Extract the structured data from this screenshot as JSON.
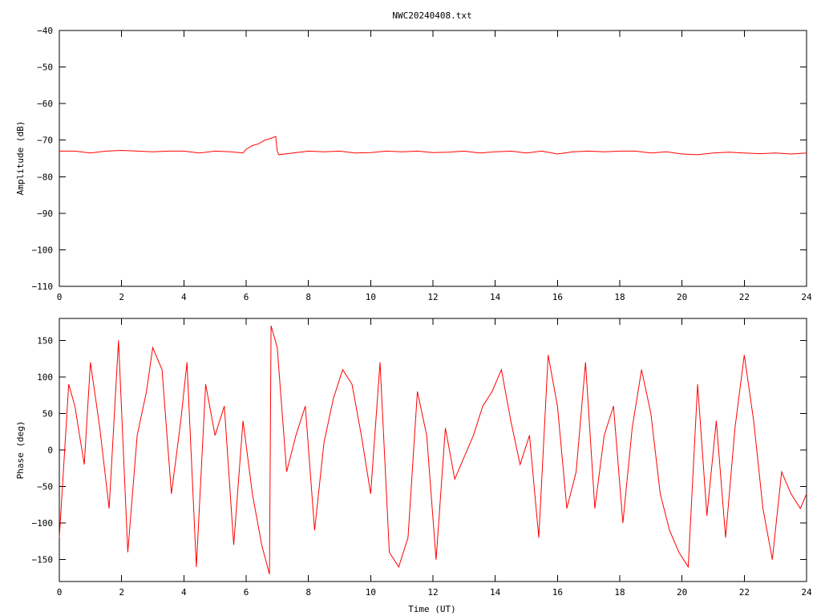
{
  "title": "NWC20240408.txt",
  "colors": {
    "trace": "#ff0000",
    "axis": "#000000",
    "background": "#ffffff"
  },
  "chart_data": [
    {
      "type": "line",
      "ylabel": "Amplitude (dB)",
      "xlabel": "",
      "xlim": [
        0,
        24
      ],
      "ylim": [
        -110,
        -40
      ],
      "xticks": [
        "0",
        "2",
        "4",
        "6",
        "8",
        "10",
        "12",
        "14",
        "16",
        "18",
        "20",
        "22",
        "24"
      ],
      "yticks": [
        "-40",
        "-50",
        "-60",
        "-70",
        "-80",
        "-90",
        "-100",
        "-110"
      ],
      "grid": false,
      "series": [
        {
          "x": [
            0,
            0.5,
            1,
            1.5,
            2,
            2.5,
            3,
            3.5,
            4,
            4.5,
            5,
            5.5,
            5.9,
            6.0,
            6.2,
            6.4,
            6.6,
            6.8,
            6.95,
            7.0,
            7.05,
            7.5,
            8,
            8.5,
            9,
            9.5,
            10,
            10.5,
            11,
            11.5,
            12,
            12.5,
            13,
            13.5,
            14,
            14.5,
            15,
            15.5,
            16,
            16.5,
            17,
            17.5,
            18,
            18.5,
            19,
            19.5,
            20,
            20.5,
            21,
            21.5,
            22,
            22.5,
            23,
            23.5,
            24
          ],
          "values": [
            -73,
            -73,
            -73.5,
            -73,
            -72.8,
            -73,
            -73.2,
            -73,
            -73,
            -73.5,
            -73,
            -73.2,
            -73.5,
            -72.5,
            -71.5,
            -71,
            -70,
            -69.5,
            -69,
            -73,
            -74,
            -73.5,
            -73,
            -73.2,
            -73,
            -73.5,
            -73.4,
            -73,
            -73.2,
            -73,
            -73.4,
            -73.3,
            -73,
            -73.5,
            -73.2,
            -73,
            -73.5,
            -73,
            -73.8,
            -73.2,
            -73,
            -73.2,
            -73,
            -73,
            -73.5,
            -73.2,
            -73.8,
            -74,
            -73.5,
            -73.3,
            -73.5,
            -73.7,
            -73.5,
            -73.8,
            -73.5
          ]
        }
      ]
    },
    {
      "type": "line",
      "ylabel": "Phase (deg)",
      "xlabel": "Time (UT)",
      "xlim": [
        0,
        24
      ],
      "ylim": [
        -180,
        180
      ],
      "xticks": [
        "0",
        "2",
        "4",
        "6",
        "8",
        "10",
        "12",
        "14",
        "16",
        "18",
        "20",
        "22",
        "24"
      ],
      "yticks": [
        "150",
        "100",
        "50",
        "0",
        "-50",
        "-100",
        "-150"
      ],
      "grid": false,
      "series": [
        {
          "x": [
            0,
            0.3,
            0.5,
            0.8,
            1,
            1.3,
            1.6,
            1.9,
            2.2,
            2.5,
            2.8,
            3.0,
            3.3,
            3.6,
            3.9,
            4.1,
            4.4,
            4.7,
            5.0,
            5.3,
            5.6,
            5.9,
            6.2,
            6.5,
            6.75,
            6.8,
            7.0,
            7.3,
            7.6,
            7.9,
            8.2,
            8.5,
            8.8,
            9.1,
            9.4,
            9.7,
            10.0,
            10.3,
            10.6,
            10.9,
            11.2,
            11.5,
            11.8,
            12.1,
            12.4,
            12.7,
            13.0,
            13.3,
            13.6,
            13.9,
            14.2,
            14.5,
            14.8,
            15.1,
            15.4,
            15.7,
            16.0,
            16.3,
            16.6,
            16.9,
            17.2,
            17.5,
            17.8,
            18.1,
            18.4,
            18.7,
            19.0,
            19.3,
            19.6,
            19.9,
            20.2,
            20.5,
            20.8,
            21.1,
            21.4,
            21.7,
            22.0,
            22.3,
            22.6,
            22.9,
            23.2,
            23.5,
            23.8,
            24
          ],
          "values": [
            -120,
            90,
            60,
            -20,
            120,
            30,
            -80,
            150,
            -140,
            20,
            80,
            140,
            110,
            -60,
            40,
            120,
            -160,
            90,
            20,
            60,
            -130,
            40,
            -60,
            -130,
            -170,
            170,
            140,
            -30,
            20,
            60,
            -110,
            10,
            70,
            110,
            90,
            20,
            -60,
            120,
            -140,
            -160,
            -120,
            80,
            20,
            -150,
            30,
            -40,
            -10,
            20,
            60,
            80,
            110,
            40,
            -20,
            20,
            -120,
            130,
            60,
            -80,
            -30,
            120,
            -80,
            20,
            60,
            -100,
            30,
            110,
            50,
            -60,
            -110,
            -140,
            -160,
            90,
            -90,
            40,
            -120,
            30,
            130,
            40,
            -80,
            -150,
            -30,
            -60,
            -80,
            -60
          ]
        }
      ]
    }
  ]
}
